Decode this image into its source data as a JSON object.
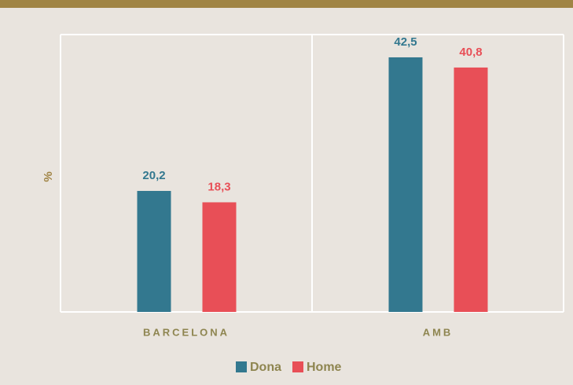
{
  "chart_data": {
    "type": "bar",
    "y_label": "%",
    "categories": [
      "BARCELONA",
      "AMB"
    ],
    "series": [
      {
        "name": "Dona",
        "color": "#33788f",
        "values": [
          20.2,
          42.5
        ],
        "value_labels": [
          "20,2",
          "42,5"
        ]
      },
      {
        "name": "Home",
        "color": "#e84f57",
        "values": [
          18.3,
          40.8
        ],
        "value_labels": [
          "18,3",
          "40,8"
        ]
      }
    ],
    "ylim": [
      0,
      46.3
    ],
    "legend": "bottom"
  }
}
